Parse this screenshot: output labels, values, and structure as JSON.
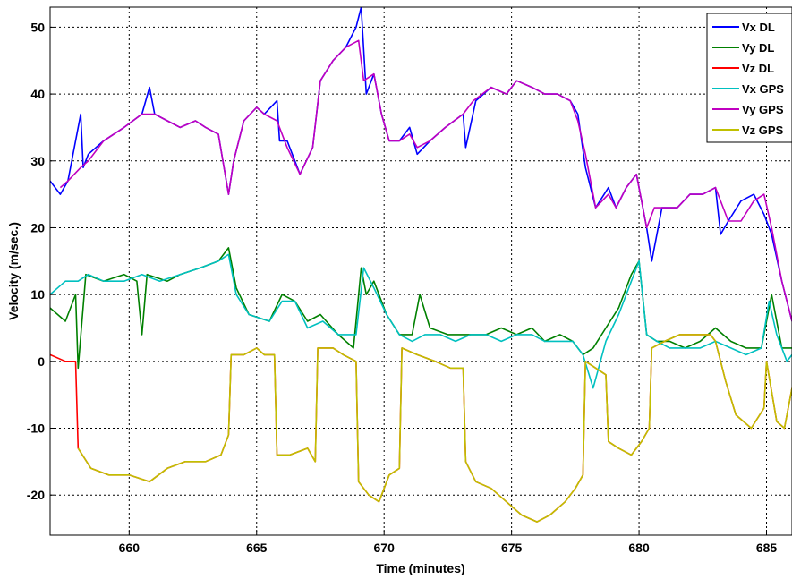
{
  "chart_data": {
    "type": "line",
    "xlabel": "Time (minutes)",
    "ylabel": "Velocity (m/sec.)",
    "xlim": [
      656.9,
      686.0
    ],
    "ylim": [
      -26,
      53
    ],
    "xticks": [
      660,
      665,
      670,
      675,
      680,
      685
    ],
    "yticks": [
      -20,
      -10,
      0,
      10,
      20,
      30,
      40,
      50
    ],
    "grid": true,
    "legend_position": "top-right",
    "series": [
      {
        "name": "Vx DL",
        "color": "#0000ff",
        "x": [
          656.9,
          657.3,
          657.6,
          658.1,
          658.2,
          658.4,
          659.0,
          659.8,
          660.5,
          660.8,
          661.0,
          661.5,
          662.0,
          662.6,
          663.0,
          663.5,
          663.9,
          664.1,
          664.5,
          665.0,
          665.3,
          665.8,
          665.9,
          666.2,
          666.7,
          667.2,
          667.5,
          668.0,
          668.5,
          668.9,
          669.1,
          669.3,
          669.6,
          669.9,
          670.2,
          670.6,
          671.0,
          671.3,
          671.8,
          672.4,
          673.1,
          673.2,
          673.6,
          674.2,
          674.8,
          675.2,
          675.8,
          676.3,
          676.8,
          677.3,
          677.6,
          677.9,
          678.3,
          678.8,
          679.1,
          679.5,
          679.9,
          680.3,
          680.5,
          680.9,
          681.5,
          682.0,
          682.5,
          683.0,
          683.2,
          683.5,
          684.0,
          684.5,
          684.9,
          685.2,
          685.6,
          686.0
        ],
        "y": [
          27,
          25,
          27,
          37,
          29,
          31,
          33,
          35,
          37,
          41,
          37,
          36,
          35,
          36,
          35,
          34,
          25,
          30,
          36,
          38,
          37,
          39,
          33,
          33,
          28,
          32,
          42,
          45,
          47,
          50,
          53,
          40,
          43,
          37,
          33,
          33,
          35,
          31,
          33,
          35,
          37,
          32,
          39,
          41,
          40,
          42,
          41,
          40,
          40,
          39,
          37,
          29,
          23,
          26,
          23,
          26,
          28,
          20,
          15,
          23,
          23,
          25,
          25,
          26,
          19,
          21,
          24,
          25,
          22,
          19,
          12,
          6
        ]
      },
      {
        "name": "Vy DL",
        "color": "#008000",
        "x": [
          656.9,
          657.5,
          657.9,
          658.0,
          658.3,
          659.0,
          659.8,
          660.3,
          660.5,
          660.7,
          661.5,
          662.0,
          662.8,
          663.5,
          663.9,
          664.2,
          664.7,
          665.5,
          666.0,
          666.5,
          667.0,
          667.5,
          668.2,
          668.8,
          669.1,
          669.3,
          669.6,
          670.1,
          670.6,
          671.1,
          671.4,
          671.8,
          672.5,
          673.0,
          673.5,
          674.0,
          674.6,
          675.2,
          675.8,
          676.3,
          676.9,
          677.4,
          677.8,
          678.2,
          678.7,
          679.2,
          679.7,
          680.0,
          680.3,
          680.7,
          681.2,
          681.8,
          682.4,
          683.0,
          683.6,
          684.2,
          684.8,
          685.2,
          685.6,
          686.0
        ],
        "y": [
          8,
          6,
          10,
          -1,
          13,
          12,
          13,
          12,
          4,
          13,
          12,
          13,
          14,
          15,
          17,
          11,
          7,
          6,
          10,
          9,
          6,
          7,
          4,
          2,
          14,
          10,
          12,
          7,
          4,
          4,
          10,
          5,
          4,
          4,
          4,
          4,
          5,
          4,
          5,
          3,
          4,
          3,
          1,
          2,
          5,
          8,
          13,
          15,
          4,
          3,
          3,
          2,
          3,
          5,
          3,
          2,
          2,
          10,
          2,
          2
        ]
      },
      {
        "name": "Vz DL",
        "color": "#ff0000",
        "x": [
          656.9,
          657.5,
          657.9,
          658.0,
          658.5,
          659.2,
          660.0,
          660.8,
          661.5,
          662.2,
          663.0,
          663.6,
          663.9,
          664.0,
          664.5,
          665.0,
          665.3,
          665.7,
          665.8,
          666.3,
          667.0,
          667.3,
          667.4,
          668.0,
          668.4,
          668.9,
          669.0,
          669.4,
          669.8,
          670.2,
          670.6,
          670.7,
          671.3,
          672.0,
          672.6,
          673.1,
          673.2,
          673.6,
          674.2,
          674.8,
          675.4,
          676.0,
          676.5,
          677.1,
          677.5,
          677.8,
          677.9,
          678.3,
          678.7,
          678.8,
          679.2,
          679.7,
          680.1,
          680.4,
          680.5,
          681.0,
          681.6,
          682.2,
          682.8,
          683.0,
          683.4,
          683.8,
          684.4,
          684.9,
          685.0,
          685.4,
          685.7,
          686.0
        ],
        "y": [
          1,
          0,
          0,
          -13,
          -16,
          -17,
          -17,
          -18,
          -16,
          -15,
          -15,
          -14,
          -11,
          1,
          1,
          2,
          1,
          1,
          -14,
          -14,
          -13,
          -15,
          2,
          2,
          1,
          0,
          -18,
          -20,
          -21,
          -17,
          -16,
          2,
          1,
          0,
          -1,
          -1,
          -15,
          -18,
          -19,
          -21,
          -23,
          -24,
          -23,
          -21,
          -19,
          -17,
          0,
          -1,
          -2,
          -12,
          -13,
          -14,
          -12,
          -10,
          2,
          3,
          4,
          4,
          4,
          3,
          -3,
          -8,
          -10,
          -7,
          0,
          -9,
          -10,
          -4
        ]
      },
      {
        "name": "Vx GPS",
        "color": "#00c0c0",
        "x": [
          656.9,
          657.2,
          657.5,
          658.0,
          658.4,
          659.0,
          659.8,
          660.5,
          661.2,
          662.0,
          662.8,
          663.5,
          663.9,
          664.2,
          664.7,
          665.5,
          666.0,
          666.5,
          667.0,
          667.6,
          668.2,
          668.9,
          669.2,
          669.6,
          670.1,
          670.6,
          671.1,
          671.6,
          672.2,
          672.8,
          673.4,
          674.0,
          674.6,
          675.2,
          675.8,
          676.3,
          676.9,
          677.4,
          677.8,
          678.2,
          678.7,
          679.2,
          679.7,
          680.0,
          680.3,
          680.7,
          681.2,
          681.8,
          682.4,
          683.0,
          683.6,
          684.2,
          684.8,
          685.1,
          685.4,
          685.8,
          686.0
        ],
        "y": [
          10,
          11,
          12,
          12,
          13,
          12,
          12,
          13,
          12,
          13,
          14,
          15,
          16,
          10,
          7,
          6,
          9,
          9,
          5,
          6,
          4,
          4,
          14,
          11,
          7,
          4,
          3,
          4,
          4,
          3,
          4,
          4,
          3,
          4,
          4,
          3,
          3,
          3,
          1,
          -4,
          3,
          7,
          12,
          15,
          4,
          3,
          2,
          2,
          2,
          3,
          2,
          1,
          2,
          9,
          4,
          0,
          1
        ]
      },
      {
        "name": "Vy GPS",
        "color": "#c000c0",
        "x": [
          657.3,
          657.6,
          658.1,
          658.4,
          659.0,
          659.8,
          660.5,
          661.0,
          661.5,
          662.0,
          662.6,
          663.0,
          663.5,
          663.9,
          664.1,
          664.5,
          665.0,
          665.3,
          665.8,
          666.2,
          666.7,
          667.2,
          667.5,
          668.0,
          668.5,
          669.0,
          669.2,
          669.6,
          669.9,
          670.2,
          670.6,
          671.0,
          671.3,
          671.8,
          672.4,
          673.1,
          673.5,
          674.2,
          674.8,
          675.2,
          675.8,
          676.3,
          676.8,
          677.3,
          677.6,
          677.9,
          678.3,
          678.8,
          679.1,
          679.5,
          679.9,
          680.3,
          680.6,
          680.9,
          681.5,
          682.0,
          682.5,
          683.0,
          683.5,
          684.0,
          684.5,
          684.9,
          685.2,
          685.6,
          686.0
        ],
        "y": [
          26,
          27,
          29,
          30,
          33,
          35,
          37,
          37,
          36,
          35,
          36,
          35,
          34,
          25,
          30,
          36,
          38,
          37,
          36,
          32,
          28,
          32,
          42,
          45,
          47,
          48,
          42,
          43,
          37,
          33,
          33,
          34,
          32,
          33,
          35,
          37,
          39,
          41,
          40,
          42,
          41,
          40,
          40,
          39,
          36,
          31,
          23,
          25,
          23,
          26,
          28,
          20,
          23,
          23,
          23,
          25,
          25,
          26,
          21,
          21,
          24,
          25,
          20,
          12,
          6
        ]
      },
      {
        "name": "Vz GPS",
        "color": "#c0c000",
        "x": [
          658.0,
          658.5,
          659.2,
          660.0,
          660.8,
          661.5,
          662.2,
          663.0,
          663.6,
          663.9,
          664.0,
          664.5,
          665.0,
          665.3,
          665.7,
          665.8,
          666.3,
          667.0,
          667.3,
          667.4,
          668.0,
          668.4,
          668.9,
          669.0,
          669.4,
          669.8,
          670.2,
          670.6,
          670.7,
          671.3,
          672.0,
          672.6,
          673.1,
          673.2,
          673.6,
          674.2,
          674.8,
          675.4,
          676.0,
          676.5,
          677.1,
          677.5,
          677.8,
          677.9,
          678.3,
          678.7,
          678.8,
          679.2,
          679.7,
          680.1,
          680.4,
          680.5,
          681.0,
          681.6,
          682.2,
          682.8,
          683.0,
          683.4,
          683.8,
          684.4,
          684.9,
          685.0,
          685.4,
          685.7,
          686.0
        ],
        "y": [
          -13,
          -16,
          -17,
          -17,
          -18,
          -16,
          -15,
          -15,
          -14,
          -11,
          1,
          1,
          2,
          1,
          1,
          -14,
          -14,
          -13,
          -15,
          2,
          2,
          1,
          0,
          -18,
          -20,
          -21,
          -17,
          -16,
          2,
          1,
          0,
          -1,
          -1,
          -15,
          -18,
          -19,
          -21,
          -23,
          -24,
          -23,
          -21,
          -19,
          -17,
          0,
          -1,
          -2,
          -12,
          -13,
          -14,
          -12,
          -10,
          2,
          3,
          4,
          4,
          4,
          3,
          -3,
          -8,
          -10,
          -7,
          0,
          -9,
          -10,
          -4
        ]
      }
    ]
  }
}
